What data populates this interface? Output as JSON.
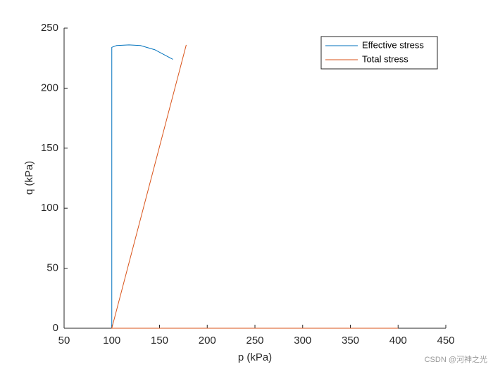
{
  "chart_data": {
    "type": "line",
    "x_label": "p (kPa)",
    "y_label": "q (kPa)",
    "xlim": [
      50,
      450
    ],
    "xticks": [
      50,
      100,
      150,
      200,
      250,
      300,
      350,
      400,
      450
    ],
    "ylim": [
      0,
      250
    ],
    "yticks": [
      0,
      50,
      100,
      150,
      200,
      250
    ],
    "legend": "upper right",
    "series": [
      {
        "name": "Effective stress",
        "color": "#0072bd",
        "x": [
          100,
          100,
          105,
          118,
          130,
          145,
          164
        ],
        "values": [
          0,
          234,
          235.5,
          236,
          235.5,
          232,
          224
        ]
      },
      {
        "name": "Total stress",
        "color": "#d95319",
        "x": [
          400,
          100,
          178
        ],
        "values": [
          0,
          0,
          236
        ]
      }
    ]
  },
  "watermark": "CSDN @河神之光"
}
